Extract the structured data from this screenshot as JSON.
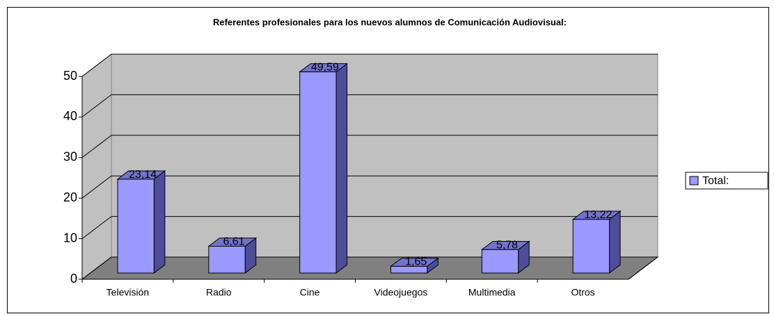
{
  "chart_data": {
    "type": "bar",
    "title": "Referentes profesionales para los nuevos alumnos de Comunicación Audiovisual:",
    "categories": [
      "Televisión",
      "Radio",
      "Cine",
      "Videojuegos",
      "Multimedia",
      "Otros"
    ],
    "series": [
      {
        "name": "Total:",
        "color": "#9999ff",
        "values": [
          23.14,
          6.61,
          49.59,
          1.65,
          5.78,
          13.22
        ],
        "value_labels": [
          "23,14",
          "6,61",
          "49,59",
          "1,65",
          "5,78",
          "13,22"
        ]
      }
    ],
    "ylim": [
      0,
      50
    ],
    "yticks": [
      0,
      10,
      20,
      30,
      40,
      50
    ],
    "grid": true,
    "legend": "right"
  }
}
